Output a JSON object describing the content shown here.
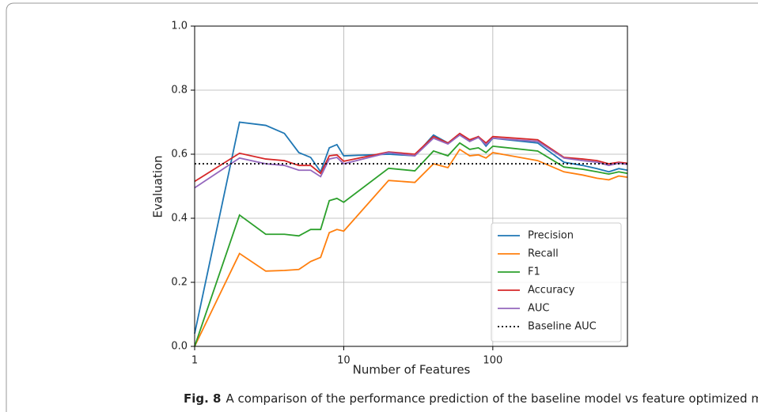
{
  "chart_data": {
    "type": "line",
    "xlabel": "Number of Features",
    "ylabel": "Evaluation",
    "x": [
      1,
      2,
      3,
      4,
      5,
      6,
      7,
      8,
      9,
      10,
      20,
      30,
      40,
      50,
      60,
      70,
      80,
      90,
      100,
      200,
      300,
      400,
      500,
      600,
      700,
      800
    ],
    "series": [
      {
        "name": "Precision",
        "color": "#1f77b4",
        "values": [
          0.04,
          0.7,
          0.69,
          0.665,
          0.605,
          0.59,
          0.545,
          0.62,
          0.63,
          0.595,
          0.6,
          0.595,
          0.66,
          0.635,
          0.66,
          0.64,
          0.655,
          0.625,
          0.65,
          0.635,
          0.575,
          0.565,
          0.555,
          0.545,
          0.555,
          0.55
        ]
      },
      {
        "name": "Recall",
        "color": "#ff7f0e",
        "values": [
          0,
          0.29,
          0.235,
          0.237,
          0.24,
          0.265,
          0.278,
          0.355,
          0.365,
          0.36,
          0.518,
          0.512,
          0.57,
          0.558,
          0.615,
          0.595,
          0.598,
          0.588,
          0.605,
          0.58,
          0.545,
          0.535,
          0.525,
          0.52,
          0.532,
          0.528
        ]
      },
      {
        "name": "F1",
        "color": "#2ca02c",
        "values": [
          0,
          0.41,
          0.35,
          0.35,
          0.345,
          0.365,
          0.365,
          0.455,
          0.462,
          0.45,
          0.556,
          0.548,
          0.61,
          0.595,
          0.635,
          0.615,
          0.62,
          0.605,
          0.625,
          0.61,
          0.56,
          0.553,
          0.545,
          0.538,
          0.545,
          0.54
        ]
      },
      {
        "name": "Accuracy",
        "color": "#d62728",
        "values": [
          0.515,
          0.603,
          0.585,
          0.58,
          0.565,
          0.565,
          0.54,
          0.595,
          0.598,
          0.578,
          0.607,
          0.6,
          0.655,
          0.635,
          0.665,
          0.645,
          0.655,
          0.635,
          0.655,
          0.645,
          0.59,
          0.585,
          0.58,
          0.57,
          0.575,
          0.572
        ]
      },
      {
        "name": "AUC",
        "color": "#9467bd",
        "values": [
          0.495,
          0.588,
          0.57,
          0.565,
          0.55,
          0.55,
          0.53,
          0.585,
          0.59,
          0.57,
          0.605,
          0.595,
          0.65,
          0.632,
          0.66,
          0.64,
          0.652,
          0.63,
          0.65,
          0.64,
          0.588,
          0.58,
          0.575,
          0.565,
          0.572,
          0.568
        ]
      }
    ],
    "baseline": {
      "name": "Baseline AUC",
      "value": 0.57,
      "color": "#000000"
    },
    "xscale": "log",
    "xlim": [
      1,
      800
    ],
    "xticks": [
      1,
      10,
      100
    ],
    "ylim": [
      0,
      1
    ],
    "yticks": [
      {
        "value": 0,
        "label": "0.0"
      },
      0.2,
      0.4,
      0.6,
      0.8,
      {
        "value": 1,
        "label": "1.0"
      }
    ],
    "grid": true,
    "legend": "lower right"
  },
  "caption": {
    "label": "Fig. 8",
    "text": "A comparison of the performance prediction of the baseline model vs feature optimized model"
  }
}
